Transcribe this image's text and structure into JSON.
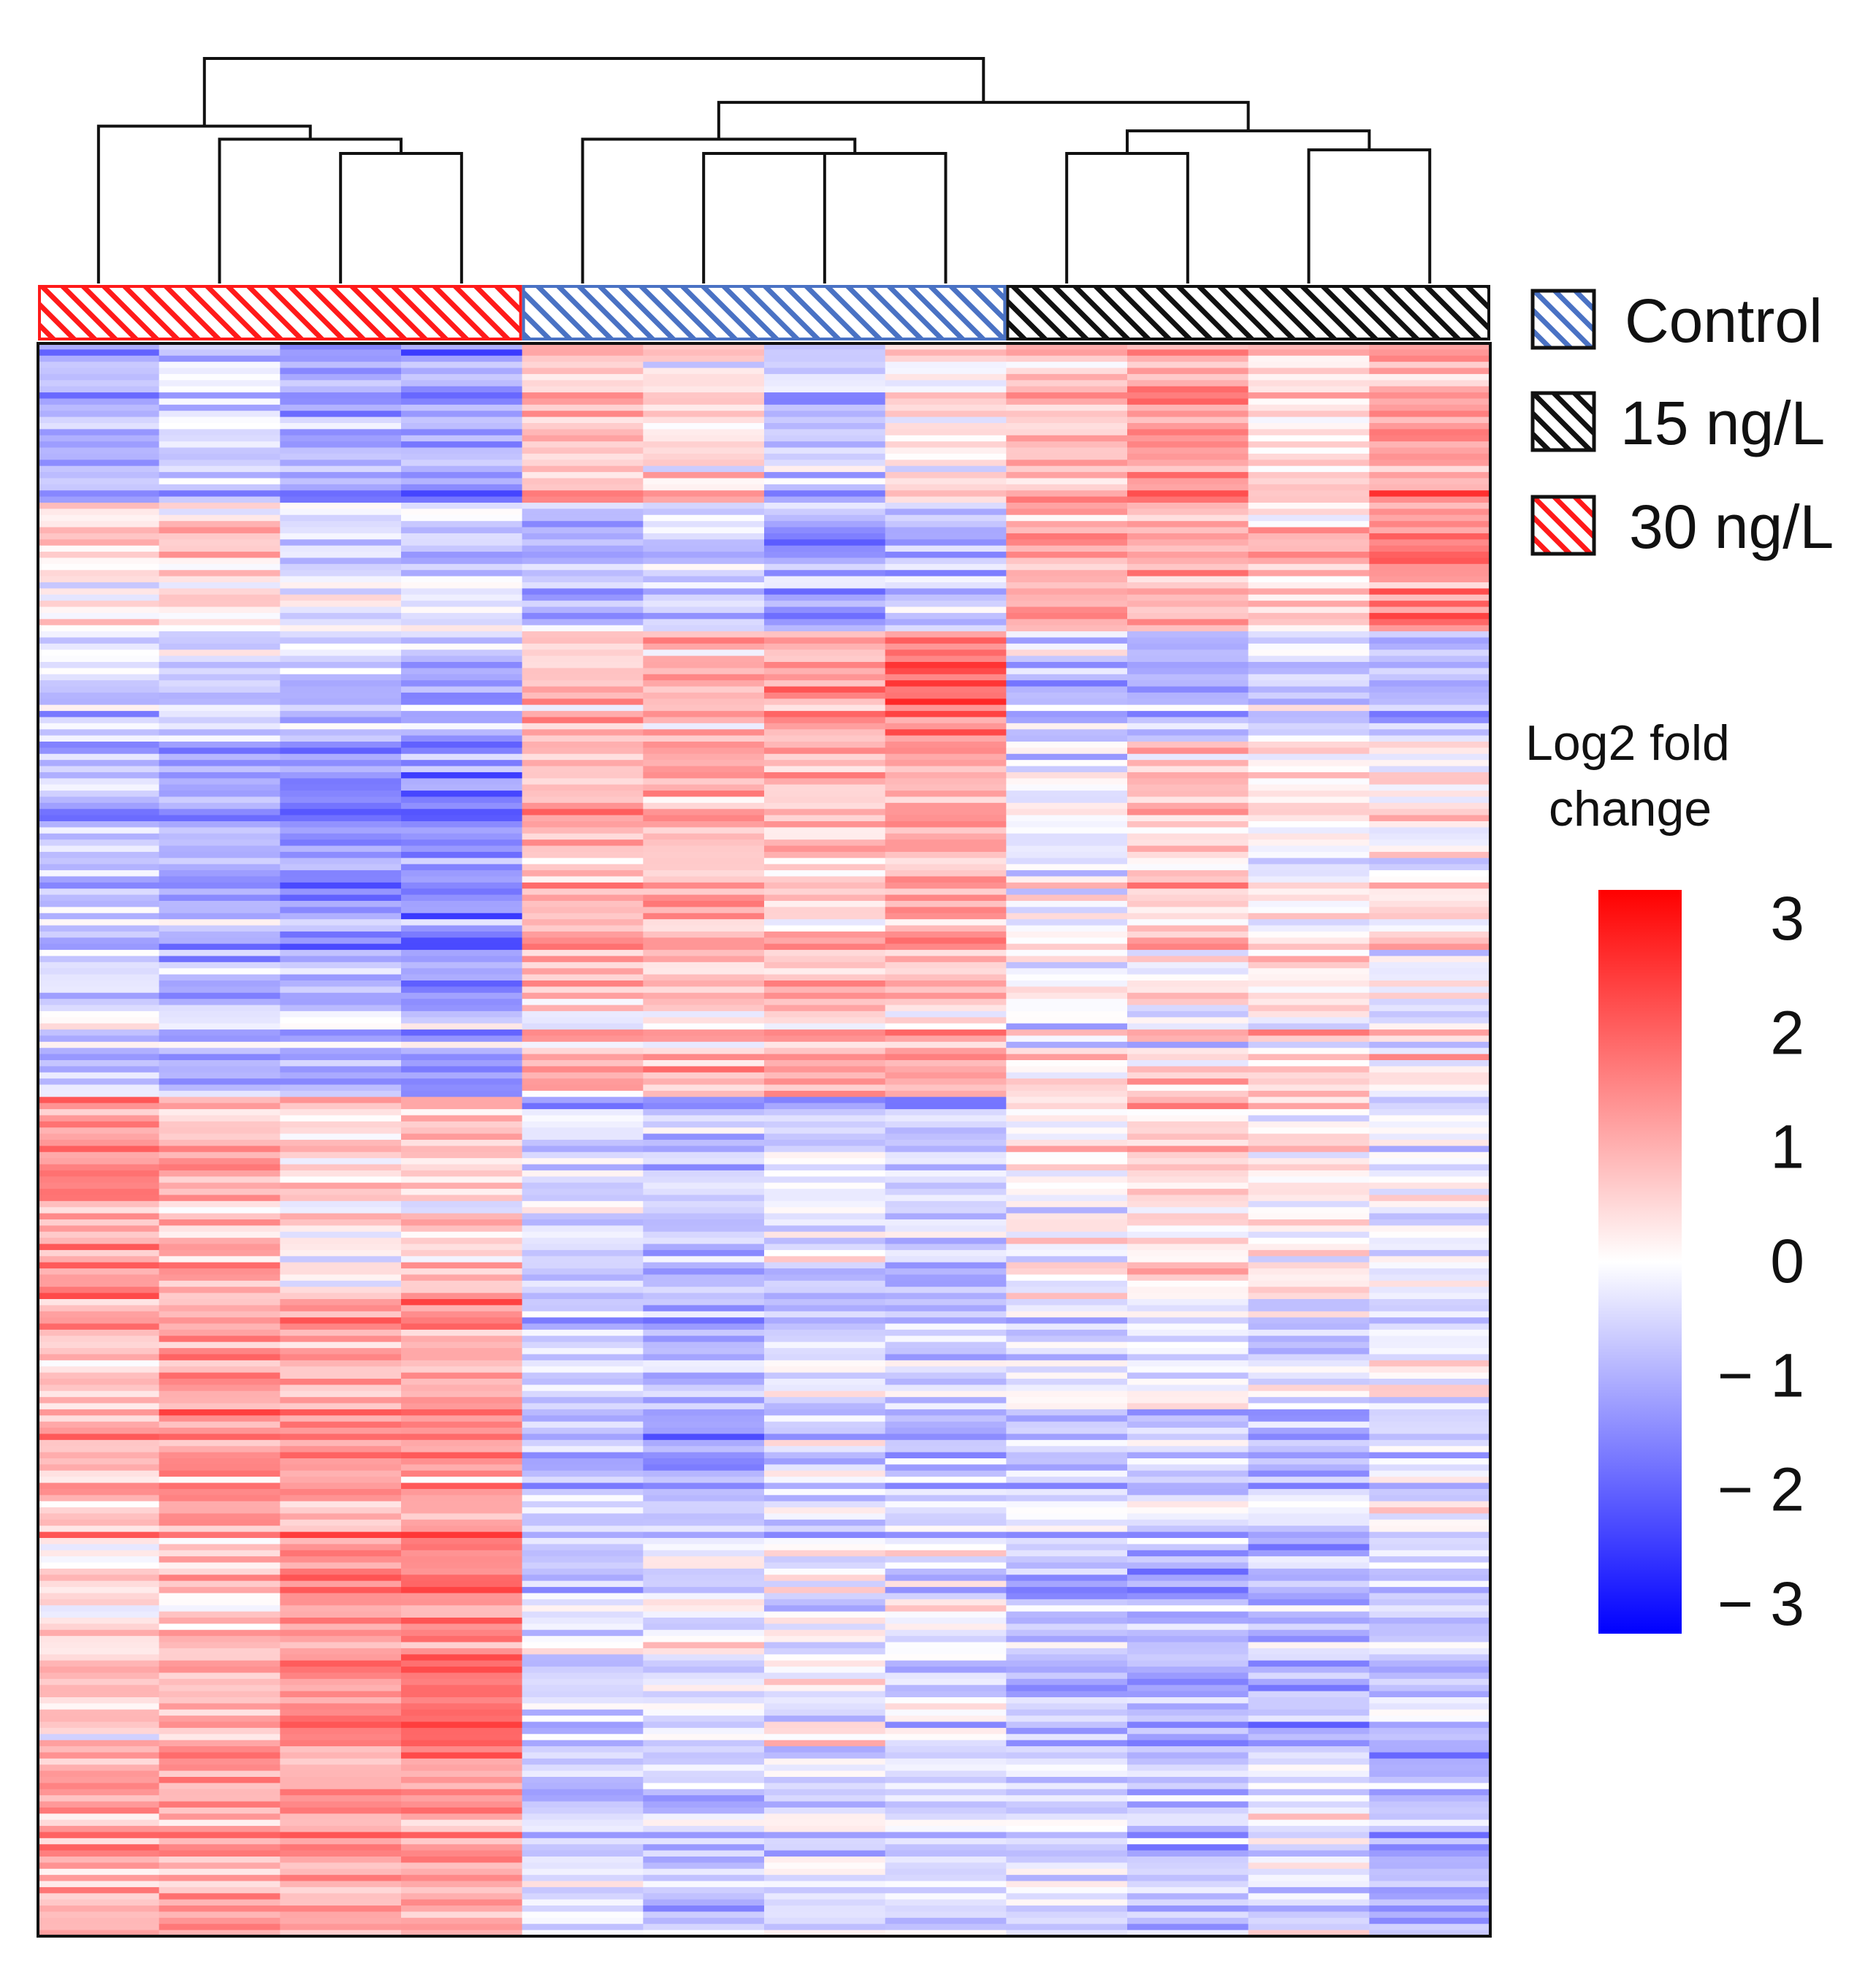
{
  "chart_data": {
    "type": "heatmap",
    "title": "",
    "n_columns": 12,
    "n_rows": 260,
    "column_groups": [
      {
        "name": "30 ng/L",
        "color": "#ff1a1a",
        "columns": [
          1,
          2,
          3,
          4
        ]
      },
      {
        "name": "Control",
        "color": "#4a72c4",
        "columns": [
          5,
          6,
          7,
          8
        ]
      },
      {
        "name": "15 ng/L",
        "color": "#111111",
        "columns": [
          9,
          10,
          11,
          12
        ]
      }
    ],
    "legend": {
      "position": "right",
      "entries": [
        {
          "label": "Control",
          "color": "#4a72c4"
        },
        {
          "label": "15 ng/L",
          "color": "#111111"
        },
        {
          "label": "30 ng/L",
          "color": "#ff1a1a"
        }
      ]
    },
    "colorbar": {
      "title_line1": "Log2 fold",
      "title_line2": "change",
      "min": -3,
      "max": 3,
      "low_color": "#0000ff",
      "mid_color": "#ffffff",
      "high_color": "#ff0000",
      "ticks": [
        {
          "value": 3,
          "label": "3"
        },
        {
          "value": 2,
          "label": "2"
        },
        {
          "value": 1,
          "label": "1"
        },
        {
          "value": 0,
          "label": "0"
        },
        {
          "value": -1,
          "label": "− 1"
        },
        {
          "value": -2,
          "label": "− 2"
        },
        {
          "value": -3,
          "label": "− 3"
        }
      ]
    },
    "row_blocks": [
      {
        "from": 0,
        "to": 0.1,
        "means": [
          -0.9,
          -0.6,
          -1.0,
          -1.2,
          0.8,
          0.4,
          -0.5,
          0.3,
          0.8,
          1.2,
          0.4,
          1.1
        ]
      },
      {
        "from": 0.1,
        "to": 0.18,
        "means": [
          0.3,
          0.4,
          -0.3,
          -0.5,
          -0.8,
          -0.6,
          -1.0,
          -0.8,
          1.0,
          0.9,
          0.6,
          1.3
        ]
      },
      {
        "from": 0.18,
        "to": 0.25,
        "means": [
          -0.4,
          -0.5,
          -0.6,
          -0.7,
          0.6,
          0.8,
          0.9,
          1.5,
          -0.7,
          -0.8,
          -0.5,
          -0.6
        ]
      },
      {
        "from": 0.25,
        "to": 0.38,
        "means": [
          -0.8,
          -1.0,
          -1.3,
          -1.4,
          0.9,
          1.0,
          0.8,
          1.0,
          0.0,
          0.7,
          0.2,
          0.3
        ]
      },
      {
        "from": 0.38,
        "to": 0.47,
        "means": [
          -0.5,
          -0.8,
          -0.7,
          -1.1,
          0.7,
          0.7,
          0.9,
          0.7,
          0.1,
          0.3,
          0.4,
          0.0
        ]
      },
      {
        "from": 0.47,
        "to": 0.6,
        "means": [
          1.2,
          0.9,
          0.4,
          0.6,
          -0.5,
          -0.8,
          -0.4,
          -0.7,
          0.2,
          0.4,
          0.3,
          -0.2
        ]
      },
      {
        "from": 0.6,
        "to": 0.75,
        "means": [
          0.8,
          1.3,
          1.1,
          1.2,
          -0.6,
          -0.9,
          -0.5,
          -0.6,
          -0.5,
          -0.4,
          -0.6,
          -0.3
        ]
      },
      {
        "from": 0.75,
        "to": 0.88,
        "means": [
          0.4,
          0.8,
          1.3,
          1.6,
          -0.5,
          -0.3,
          0.0,
          -0.3,
          -0.8,
          -1.0,
          -0.9,
          -0.6
        ]
      },
      {
        "from": 0.88,
        "to": 1.0,
        "means": [
          1.0,
          1.2,
          1.0,
          1.2,
          -0.6,
          -0.7,
          -0.5,
          -0.6,
          -0.5,
          -0.7,
          -0.4,
          -0.9
        ]
      }
    ],
    "dendrogram": {
      "column_order": [
        1,
        2,
        3,
        4,
        5,
        6,
        7,
        8,
        9,
        10,
        11,
        12
      ],
      "merges": [
        {
          "left": "c3",
          "right": "c4",
          "height": 1.0,
          "name": "m1"
        },
        {
          "left": "c2",
          "right": "m1",
          "height": 1.12,
          "name": "m2"
        },
        {
          "left": "c1",
          "right": "m2",
          "height": 1.23,
          "name": "m3"
        },
        {
          "left": "c6",
          "right": "c7",
          "height": 1.0,
          "name": "m4"
        },
        {
          "left": "m4",
          "right": "c8",
          "height": 1.0,
          "name": "m5"
        },
        {
          "left": "c5",
          "right": "m5",
          "height": 1.12,
          "name": "m6"
        },
        {
          "left": "c9",
          "right": "c10",
          "height": 1.0,
          "name": "m7"
        },
        {
          "left": "c11",
          "right": "c12",
          "height": 1.03,
          "name": "m8"
        },
        {
          "left": "m7",
          "right": "m8",
          "height": 1.19,
          "name": "m9"
        },
        {
          "left": "m6",
          "right": "m9",
          "height": 1.43,
          "name": "m10"
        },
        {
          "left": "m3",
          "right": "m10",
          "height": 1.8,
          "name": "m11"
        }
      ]
    }
  }
}
